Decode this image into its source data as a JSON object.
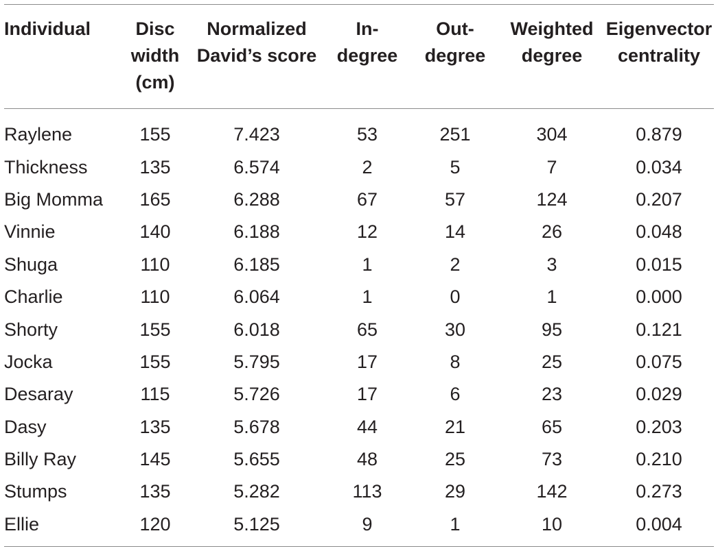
{
  "table": {
    "columns": [
      [
        "Individual"
      ],
      [
        "Disc",
        "width",
        "(cm)"
      ],
      [
        "Normalized",
        "David’s score"
      ],
      [
        "In-",
        "degree"
      ],
      [
        "Out-",
        "degree"
      ],
      [
        "Weighted",
        "degree"
      ],
      [
        "Eigenvector",
        "centrality"
      ]
    ],
    "rows": [
      [
        "Raylene",
        "155",
        "7.423",
        "53",
        "251",
        "304",
        "0.879"
      ],
      [
        "Thickness",
        "135",
        "6.574",
        "2",
        "5",
        "7",
        "0.034"
      ],
      [
        "Big Momma",
        "165",
        "6.288",
        "67",
        "57",
        "124",
        "0.207"
      ],
      [
        "Vinnie",
        "140",
        "6.188",
        "12",
        "14",
        "26",
        "0.048"
      ],
      [
        "Shuga",
        "110",
        "6.185",
        "1",
        "2",
        "3",
        "0.015"
      ],
      [
        "Charlie",
        "110",
        "6.064",
        "1",
        "0",
        "1",
        "0.000"
      ],
      [
        "Shorty",
        "155",
        "6.018",
        "65",
        "30",
        "95",
        "0.121"
      ],
      [
        "Jocka",
        "155",
        "5.795",
        "17",
        "8",
        "25",
        "0.075"
      ],
      [
        "Desaray",
        "115",
        "5.726",
        "17",
        "6",
        "23",
        "0.029"
      ],
      [
        "Dasy",
        "135",
        "5.678",
        "44",
        "21",
        "65",
        "0.203"
      ],
      [
        "Billy Ray",
        "145",
        "5.655",
        "48",
        "25",
        "73",
        "0.210"
      ],
      [
        "Stumps",
        "135",
        "5.282",
        "113",
        "29",
        "142",
        "0.273"
      ],
      [
        "Ellie",
        "120",
        "5.125",
        "9",
        "1",
        "10",
        "0.004"
      ]
    ]
  }
}
